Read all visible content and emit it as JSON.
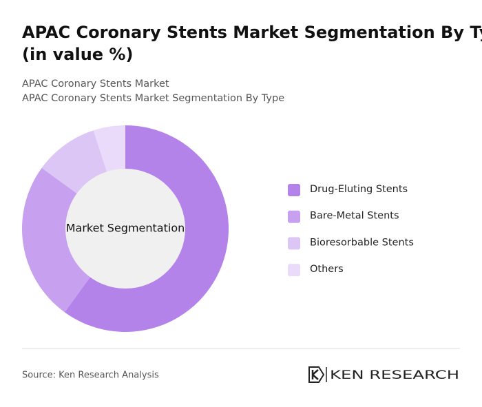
{
  "chart_data": {
    "type": "donut",
    "title": "APAC Coronary Stents Market Segmentation By Type (in value %)",
    "subtitles": [
      "APAC Coronary Stents Market",
      "APAC Coronary Stents Market Segmentation By Type"
    ],
    "center_label": "Market Segmentation",
    "categories": [
      "Drug-Eluting Stents",
      "Bare-Metal Stents",
      "Bioresorbable Stents",
      "Others"
    ],
    "values": [
      60,
      25,
      10,
      5
    ],
    "colors": [
      "#b383ea",
      "#c8a0f0",
      "#dcc6f6",
      "#e9dbf9"
    ],
    "legend": "right"
  },
  "footer": {
    "source": "Source: Ken Research Analysis",
    "logo": "KEN RESEARCH"
  }
}
